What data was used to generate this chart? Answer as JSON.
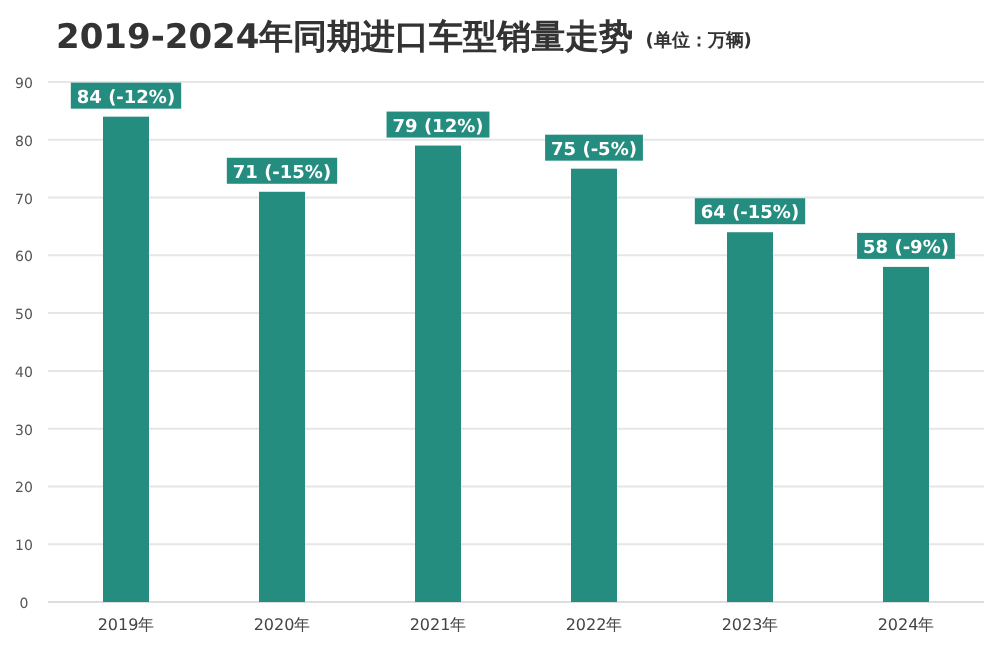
{
  "chart_data": {
    "type": "bar",
    "title": "2019-2024年同期进口车型销量走势",
    "subtitle": "(单位：万辆)",
    "categories": [
      "2019年",
      "2020年",
      "2021年",
      "2022年",
      "2023年",
      "2024年"
    ],
    "values": [
      84,
      71,
      79,
      75,
      64,
      58
    ],
    "value_labels": [
      "84 (-12%)",
      "71 (-15%)",
      "79 (12%)",
      "75 (-5%)",
      "64 (-15%)",
      "58 (-9%)"
    ],
    "color": "#258c80",
    "ylim": [
      0,
      90
    ],
    "yticks": [
      0,
      10,
      20,
      30,
      40,
      50,
      60,
      70,
      80,
      90
    ],
    "grid": "y"
  }
}
